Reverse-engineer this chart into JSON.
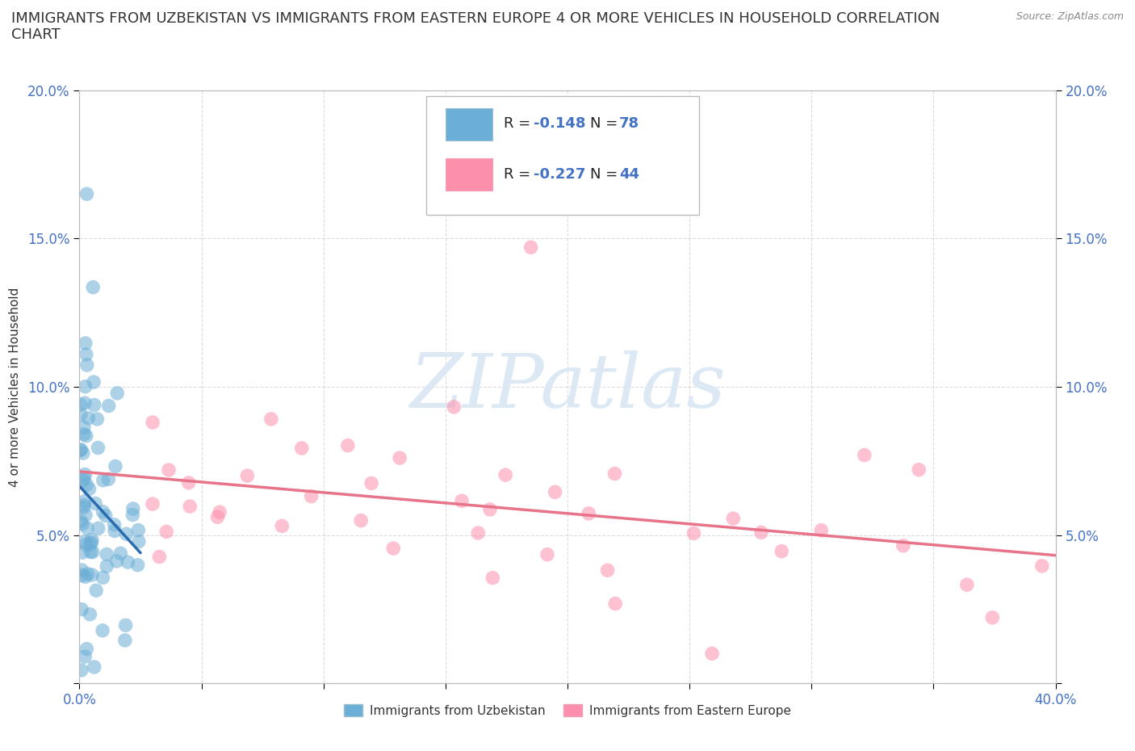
{
  "title_line1": "IMMIGRANTS FROM UZBEKISTAN VS IMMIGRANTS FROM EASTERN EUROPE 4 OR MORE VEHICLES IN HOUSEHOLD CORRELATION",
  "title_line2": "CHART",
  "source": "Source: ZipAtlas.com",
  "ylabel": "4 or more Vehicles in Household",
  "xlim": [
    0.0,
    0.4
  ],
  "ylim": [
    0.0,
    0.2
  ],
  "xticks": [
    0.0,
    0.05,
    0.1,
    0.15,
    0.2,
    0.25,
    0.3,
    0.35,
    0.4
  ],
  "yticks": [
    0.0,
    0.05,
    0.1,
    0.15,
    0.2
  ],
  "legend_label1": "Immigrants from Uzbekistan",
  "legend_label2": "Immigrants from Eastern Europe",
  "R1": -0.148,
  "N1": 78,
  "R2": -0.227,
  "N2": 44,
  "color1": "#6baed6",
  "color2": "#fc8fac",
  "color1_line": "#2b6cb0",
  "color2_line": "#e8748a",
  "color_dash": "#8ab4d8",
  "watermark_color": "#dce9f5",
  "background_color": "#ffffff",
  "grid_color": "#cccccc",
  "tick_color": "#4472c4",
  "title_fontsize": 13,
  "axis_label_fontsize": 11,
  "tick_fontsize": 12,
  "legend_fontsize": 13
}
